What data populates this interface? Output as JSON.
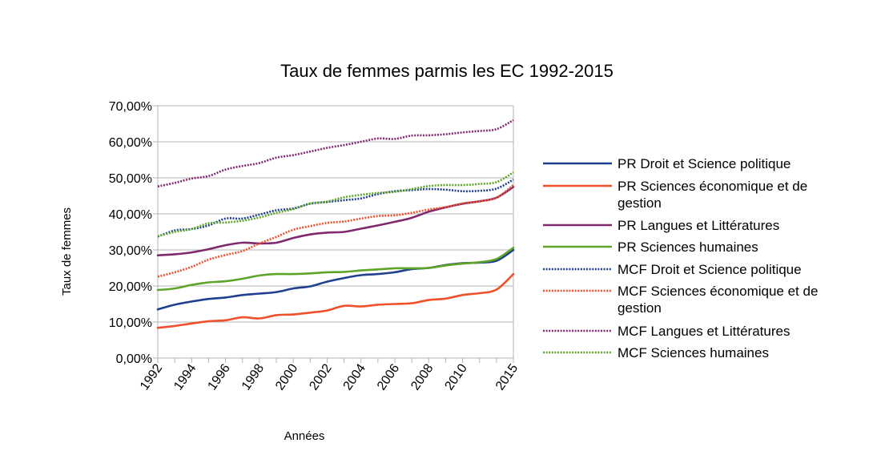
{
  "chart_data": {
    "type": "line",
    "title": "Taux de femmes parmis les EC 1992-2015",
    "xlabel": "Années",
    "ylabel": "Taux de femmes",
    "ylim": [
      0,
      70
    ],
    "y_ticks": [
      "0,00%",
      "10,00%",
      "20,00%",
      "30,00%",
      "40,00%",
      "50,00%",
      "60,00%",
      "70,00%"
    ],
    "x_tick_labels": [
      "1992",
      "1994",
      "1996",
      "1998",
      "2000",
      "2002",
      "2004",
      "2006",
      "2008",
      "2010",
      "2015"
    ],
    "x": [
      1992,
      1993,
      1994,
      1995,
      1996,
      1997,
      1998,
      1999,
      2000,
      2001,
      2002,
      2003,
      2004,
      2005,
      2006,
      2007,
      2008,
      2009,
      2010,
      2011,
      2012,
      2015
    ],
    "grid": "horizontal",
    "legend": "right",
    "series": [
      {
        "name": "PR Droit et Science politique",
        "color": "#1f3f8f",
        "style": "solid",
        "values": [
          13.5,
          14.8,
          15.7,
          16.4,
          16.8,
          17.5,
          17.9,
          18.3,
          19.3,
          19.9,
          21.2,
          22.2,
          23.0,
          23.3,
          23.8,
          24.7,
          25.0,
          25.8,
          26.3,
          26.5,
          27.0,
          30.0
        ]
      },
      {
        "name": "PR Sciences économique et de gestion",
        "color": "#f0502a",
        "style": "solid",
        "values": [
          8.4,
          8.9,
          9.6,
          10.2,
          10.5,
          11.3,
          11.0,
          11.9,
          12.1,
          12.6,
          13.2,
          14.5,
          14.3,
          14.8,
          15.0,
          15.2,
          16.1,
          16.5,
          17.5,
          18.0,
          19.0,
          23.3
        ]
      },
      {
        "name": "PR Langues et Littératures",
        "color": "#7f2a6f",
        "style": "solid",
        "values": [
          28.5,
          28.8,
          29.3,
          30.2,
          31.3,
          32.0,
          31.8,
          32.0,
          33.3,
          34.3,
          34.8,
          35.0,
          35.9,
          36.8,
          37.8,
          38.9,
          40.6,
          41.8,
          42.8,
          43.5,
          44.5,
          47.5
        ]
      },
      {
        "name": "PR Sciences humaines",
        "color": "#5ea429",
        "style": "solid",
        "values": [
          18.9,
          19.3,
          20.3,
          21.0,
          21.3,
          22.0,
          22.9,
          23.3,
          23.3,
          23.5,
          23.8,
          23.9,
          24.3,
          24.6,
          24.9,
          24.9,
          25.0,
          25.7,
          26.2,
          26.6,
          27.5,
          30.6
        ]
      },
      {
        "name": "MCF Droit et Science politique",
        "color": "#1f3f8f",
        "style": "dotted",
        "values": [
          33.7,
          35.4,
          35.8,
          36.8,
          38.7,
          38.7,
          39.8,
          41.0,
          41.5,
          42.8,
          43.3,
          43.8,
          44.3,
          45.5,
          46.3,
          46.6,
          46.9,
          46.7,
          46.3,
          46.4,
          47.0,
          49.5
        ]
      },
      {
        "name": "MCF Sciences économique et de gestion",
        "color": "#f0502a",
        "style": "dotted",
        "values": [
          22.6,
          23.8,
          25.3,
          27.3,
          28.6,
          29.7,
          31.8,
          33.6,
          35.6,
          36.6,
          37.5,
          37.9,
          38.7,
          39.4,
          39.6,
          40.3,
          41.2,
          41.9,
          42.9,
          43.5,
          44.5,
          48.0
        ]
      },
      {
        "name": "MCF Langues et Littératures",
        "color": "#7f2a6f",
        "style": "dotted",
        "values": [
          47.6,
          48.6,
          49.8,
          50.5,
          52.3,
          53.3,
          54.1,
          55.6,
          56.3,
          57.3,
          58.3,
          59.1,
          60.0,
          60.9,
          60.8,
          61.7,
          61.8,
          62.1,
          62.6,
          63.0,
          63.5,
          66.0
        ]
      },
      {
        "name": "MCF Sciences humaines",
        "color": "#5ea429",
        "style": "dotted",
        "values": [
          33.8,
          35.0,
          35.8,
          37.4,
          37.6,
          38.1,
          39.0,
          40.3,
          41.3,
          42.9,
          43.4,
          44.6,
          45.3,
          45.8,
          46.1,
          46.9,
          47.7,
          48.0,
          48.0,
          48.3,
          48.8,
          51.5
        ]
      }
    ]
  }
}
